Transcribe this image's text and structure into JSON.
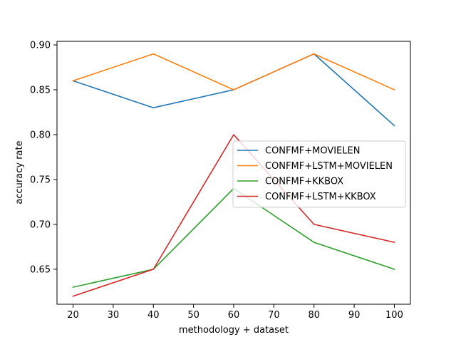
{
  "chart_data": {
    "type": "line",
    "title": "",
    "xlabel": "methodology + dataset",
    "ylabel": "accuracy rate",
    "x": [
      20,
      40,
      60,
      80,
      100
    ],
    "xticks": [
      "20",
      "30",
      "40",
      "50",
      "60",
      "70",
      "80",
      "90",
      "100"
    ],
    "yticks": [
      "0.65",
      "0.70",
      "0.75",
      "0.80",
      "0.85",
      "0.90"
    ],
    "xlim": [
      16,
      104
    ],
    "ylim": [
      0.611,
      0.904
    ],
    "grid": false,
    "legend_position": "center-right",
    "series": [
      {
        "name": "CONFMF+MOVIELEN",
        "color": "#1f77b4",
        "values": [
          0.86,
          0.83,
          0.85,
          0.89,
          0.81
        ]
      },
      {
        "name": "CONFMF+LSTM+MOVIELEN",
        "color": "#ff7f0e",
        "values": [
          0.86,
          0.89,
          0.85,
          0.89,
          0.85
        ]
      },
      {
        "name": "CONFMF+KKBOX",
        "color": "#2ca02c",
        "values": [
          0.63,
          0.65,
          0.74,
          0.68,
          0.65
        ]
      },
      {
        "name": "CONFMF+LSTM+KKBOX",
        "color": "#d62728",
        "values": [
          0.62,
          0.65,
          0.8,
          0.7,
          0.68
        ]
      }
    ]
  }
}
